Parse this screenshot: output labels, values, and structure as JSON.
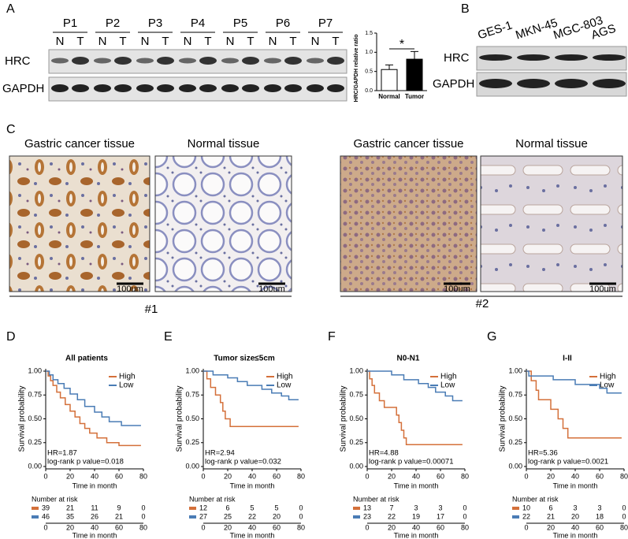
{
  "panel_a": {
    "label": "A",
    "lanes": [
      "P1",
      "P2",
      "P3",
      "P4",
      "P5",
      "P6",
      "P7"
    ],
    "sublanes": [
      "N",
      "T"
    ],
    "rows": [
      "HRC",
      "GAPDH"
    ]
  },
  "panel_b": {
    "label": "B",
    "lanes": [
      "GES-1",
      "MKN-45",
      "MGC-803",
      "AGS"
    ],
    "rows": [
      "HRC",
      "GAPDH"
    ]
  },
  "panel_c": {
    "label": "C",
    "groups": [
      {
        "images": [
          "Gastric cancer tissue",
          "Normal tissue"
        ],
        "scale": [
          "100um",
          "100um"
        ],
        "name": "#1"
      },
      {
        "images": [
          "Gastric cancer tissue",
          "Normal tissue"
        ],
        "scale": [
          "100um",
          "100um"
        ],
        "name": "#2"
      }
    ]
  },
  "chart_data": [
    {
      "type": "bar",
      "ylabel": "HRC/GAPDH relative ratio",
      "categories": [
        "Normal",
        "Tumor"
      ],
      "values": [
        0.55,
        0.82
      ],
      "errors": [
        0.12,
        0.2
      ],
      "colors": [
        "#ffffff",
        "#000000"
      ],
      "ylim": [
        0,
        1.5
      ],
      "yticks": [
        {
          "value": 0,
          "label": "0.0"
        },
        0.5,
        {
          "value": 1,
          "label": "1.0"
        },
        1.5
      ],
      "annotation": "*"
    },
    {
      "type": "line",
      "panel_label": "D",
      "title": "All patients",
      "xlabel": "Time in month",
      "ylabel": "Survival probability",
      "xlim": [
        0,
        80
      ],
      "ylim": [
        0,
        1
      ],
      "xticks": [
        0,
        20,
        40,
        60,
        80
      ],
      "yticks": [
        {
          "value": 0,
          "label": "0.00"
        },
        0.25,
        {
          "value": 0.5,
          "label": "0.50"
        },
        0.75,
        {
          "value": 1,
          "label": "1.00"
        }
      ],
      "legend": "upper right",
      "series": [
        {
          "name": "High",
          "color": "#d4703a",
          "x": [
            0,
            2,
            2,
            4,
            4,
            6,
            6,
            9,
            9,
            12,
            12,
            16,
            16,
            20,
            20,
            24,
            24,
            28,
            28,
            32,
            32,
            36,
            36,
            42,
            42,
            50,
            50,
            60,
            60,
            78
          ],
          "values": [
            1,
            1,
            0.95,
            0.95,
            0.9,
            0.9,
            0.85,
            0.85,
            0.78,
            0.78,
            0.72,
            0.72,
            0.65,
            0.65,
            0.58,
            0.58,
            0.52,
            0.52,
            0.45,
            0.45,
            0.4,
            0.4,
            0.35,
            0.35,
            0.3,
            0.3,
            0.25,
            0.25,
            0.22,
            0.22
          ]
        },
        {
          "name": "Low",
          "color": "#4a7cb5",
          "x": [
            0,
            3,
            3,
            6,
            6,
            10,
            10,
            15,
            15,
            20,
            20,
            26,
            26,
            32,
            32,
            40,
            40,
            46,
            46,
            52,
            52,
            62,
            62,
            78
          ],
          "values": [
            1,
            1,
            0.96,
            0.96,
            0.91,
            0.91,
            0.87,
            0.87,
            0.82,
            0.82,
            0.76,
            0.76,
            0.7,
            0.7,
            0.63,
            0.63,
            0.57,
            0.57,
            0.52,
            0.52,
            0.47,
            0.47,
            0.43,
            0.43
          ]
        }
      ],
      "annotations": [
        "HR=1.87",
        "log-rank p value=0.018"
      ],
      "risk_table": {
        "title": "Number at risk",
        "rows": [
          [
            39,
            21,
            11,
            9,
            0
          ],
          [
            46,
            35,
            26,
            21,
            0
          ]
        ]
      }
    },
    {
      "type": "line",
      "panel_label": "E",
      "title": "Tumor size≤5cm",
      "xlabel": "Time in month",
      "ylabel": "Survival probability",
      "xlim": [
        0,
        80
      ],
      "ylim": [
        0,
        1
      ],
      "xticks": [
        0,
        20,
        40,
        60,
        80
      ],
      "yticks": [
        {
          "value": 0,
          "label": "0.00"
        },
        0.25,
        {
          "value": 0.5,
          "label": "0.50"
        },
        0.75,
        {
          "value": 1,
          "label": "1.00"
        }
      ],
      "legend": "upper right",
      "series": [
        {
          "name": "High",
          "color": "#d4703a",
          "x": [
            0,
            3,
            3,
            6,
            6,
            10,
            10,
            14,
            14,
            16,
            16,
            18,
            18,
            22,
            22,
            78
          ],
          "values": [
            1,
            1,
            0.92,
            0.92,
            0.83,
            0.83,
            0.75,
            0.75,
            0.67,
            0.67,
            0.58,
            0.58,
            0.5,
            0.5,
            0.42,
            0.42
          ]
        },
        {
          "name": "Low",
          "color": "#4a7cb5",
          "x": [
            0,
            8,
            8,
            20,
            20,
            28,
            28,
            36,
            36,
            48,
            48,
            56,
            56,
            64,
            64,
            70,
            70,
            78
          ],
          "values": [
            1,
            1,
            0.96,
            0.96,
            0.93,
            0.93,
            0.89,
            0.89,
            0.85,
            0.85,
            0.81,
            0.81,
            0.77,
            0.77,
            0.74,
            0.74,
            0.7,
            0.7
          ]
        }
      ],
      "annotations": [
        "HR=2.94",
        "log-rank p value=0.032"
      ],
      "risk_table": {
        "title": "Number at risk",
        "rows": [
          [
            12,
            6,
            5,
            5,
            0
          ],
          [
            27,
            25,
            22,
            20,
            0
          ]
        ]
      }
    },
    {
      "type": "line",
      "panel_label": "F",
      "title": "N0-N1",
      "xlabel": "Time in month",
      "ylabel": "Survival probability",
      "xlim": [
        0,
        80
      ],
      "ylim": [
        0,
        1
      ],
      "xticks": [
        0,
        20,
        40,
        60,
        80
      ],
      "yticks": [
        {
          "value": 0,
          "label": "0.00"
        },
        0.25,
        {
          "value": 0.5,
          "label": "0.50"
        },
        0.75,
        {
          "value": 1,
          "label": "1.00"
        }
      ],
      "legend": "upper right",
      "series": [
        {
          "name": "High",
          "color": "#d4703a",
          "x": [
            0,
            2,
            2,
            4,
            4,
            6,
            6,
            10,
            10,
            14,
            14,
            24,
            24,
            26,
            26,
            28,
            28,
            30,
            30,
            32,
            32,
            78
          ],
          "values": [
            1,
            1,
            0.92,
            0.92,
            0.85,
            0.85,
            0.77,
            0.77,
            0.69,
            0.69,
            0.62,
            0.62,
            0.54,
            0.54,
            0.46,
            0.46,
            0.38,
            0.38,
            0.3,
            0.3,
            0.23,
            0.23
          ]
        },
        {
          "name": "Low",
          "color": "#4a7cb5",
          "x": [
            0,
            20,
            20,
            30,
            30,
            42,
            42,
            50,
            50,
            56,
            56,
            64,
            64,
            70,
            70,
            78
          ],
          "values": [
            1,
            1,
            0.96,
            0.96,
            0.91,
            0.91,
            0.87,
            0.87,
            0.83,
            0.83,
            0.78,
            0.78,
            0.74,
            0.74,
            0.69,
            0.69
          ]
        }
      ],
      "annotations": [
        "HR=4.88",
        "log-rank p value=0.00071"
      ],
      "risk_table": {
        "title": "Number at risk",
        "rows": [
          [
            13,
            7,
            3,
            3,
            0
          ],
          [
            23,
            22,
            19,
            17,
            0
          ]
        ]
      }
    },
    {
      "type": "line",
      "panel_label": "G",
      "title": "I-II",
      "xlabel": "Time in month",
      "ylabel": "Survival probability",
      "xlim": [
        0,
        80
      ],
      "ylim": [
        0,
        1
      ],
      "xticks": [
        0,
        20,
        40,
        60,
        80
      ],
      "yticks": [
        {
          "value": 0,
          "label": "0.00"
        },
        0.25,
        {
          "value": 0.5,
          "label": "0.50"
        },
        0.75,
        {
          "value": 1,
          "label": "1.00"
        }
      ],
      "legend": "upper right",
      "series": [
        {
          "name": "High",
          "color": "#d4703a",
          "x": [
            0,
            4,
            4,
            8,
            8,
            10,
            10,
            20,
            20,
            26,
            26,
            30,
            30,
            34,
            34,
            78
          ],
          "values": [
            1,
            1,
            0.9,
            0.9,
            0.8,
            0.8,
            0.7,
            0.7,
            0.6,
            0.6,
            0.5,
            0.5,
            0.4,
            0.4,
            0.3,
            0.3
          ]
        },
        {
          "name": "Low",
          "color": "#4a7cb5",
          "x": [
            0,
            2,
            2,
            22,
            22,
            40,
            40,
            60,
            60,
            66,
            66,
            78
          ],
          "values": [
            1,
            1,
            0.95,
            0.95,
            0.91,
            0.91,
            0.86,
            0.86,
            0.82,
            0.82,
            0.77,
            0.77
          ]
        }
      ],
      "annotations": [
        "HR=5.36",
        "log-rank p value=0.0021"
      ],
      "risk_table": {
        "title": "Number at risk",
        "rows": [
          [
            10,
            6,
            3,
            3,
            0
          ],
          [
            22,
            21,
            20,
            18,
            0
          ]
        ]
      }
    }
  ]
}
